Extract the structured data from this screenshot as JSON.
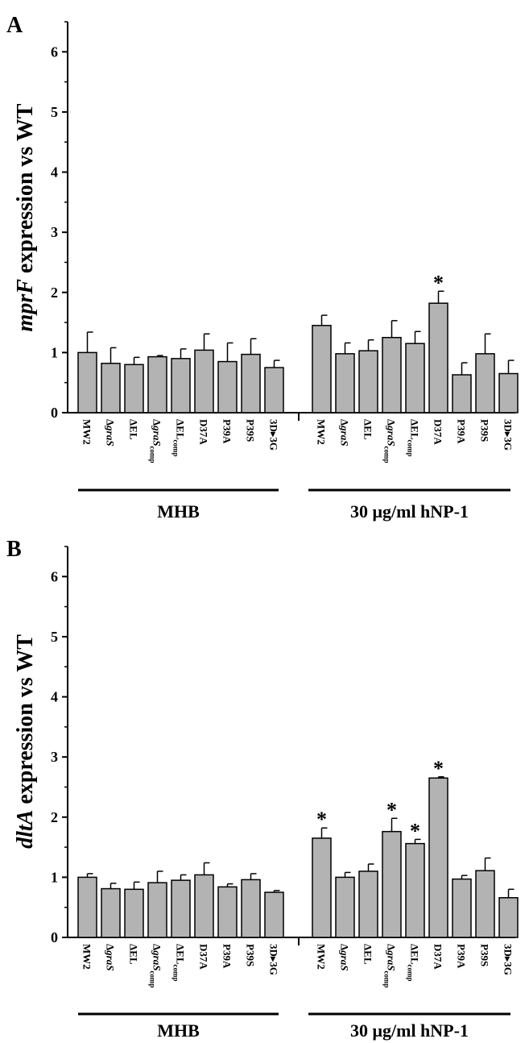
{
  "chart_data": [
    {
      "type": "bar",
      "panel": "A",
      "ylabel_gene": "mprF",
      "ylabel_rest": " expression vs WT",
      "ylim": [
        0,
        6.5
      ],
      "yticks": [
        "0",
        "1",
        "2",
        "3",
        "4",
        "5",
        "6"
      ],
      "categories": [
        {
          "base": "MW2",
          "sub": ""
        },
        {
          "base": "Δ",
          "italic": "graS",
          "sub": ""
        },
        {
          "base": "ΔEL",
          "sub": ""
        },
        {
          "base": "Δ",
          "italic": "graS",
          "sub": "comp"
        },
        {
          "base": "ΔEL",
          "sub": "comp"
        },
        {
          "base": "D37A",
          "sub": ""
        },
        {
          "base": "P39A",
          "sub": ""
        },
        {
          "base": "P39S",
          "sub": ""
        },
        {
          "base": "3D▸3G",
          "sub": ""
        }
      ],
      "groups": [
        {
          "name": "MHB",
          "values": [
            1.0,
            0.82,
            0.8,
            0.93,
            0.9,
            1.04,
            0.85,
            0.97,
            0.75
          ],
          "errors": [
            0.34,
            0.26,
            0.12,
            0.02,
            0.16,
            0.27,
            0.31,
            0.26,
            0.12
          ],
          "significant": [
            false,
            false,
            false,
            false,
            false,
            false,
            false,
            false,
            false
          ]
        },
        {
          "name": "30 μg/ml hNP-1",
          "values": [
            1.45,
            0.98,
            1.03,
            1.25,
            1.15,
            1.82,
            0.63,
            0.98,
            0.65
          ],
          "errors": [
            0.17,
            0.18,
            0.18,
            0.28,
            0.2,
            0.2,
            0.2,
            0.33,
            0.22
          ],
          "significant": [
            false,
            false,
            false,
            false,
            false,
            true,
            false,
            false,
            false
          ]
        }
      ],
      "significance_marker": "*"
    },
    {
      "type": "bar",
      "panel": "B",
      "ylabel_gene": "dltA",
      "ylabel_rest": " expression vs WT",
      "ylim": [
        0,
        6.5
      ],
      "yticks": [
        "0",
        "1",
        "2",
        "3",
        "4",
        "5",
        "6"
      ],
      "categories": [
        {
          "base": "MW2",
          "sub": ""
        },
        {
          "base": "Δ",
          "italic": "graS",
          "sub": ""
        },
        {
          "base": "ΔEL",
          "sub": ""
        },
        {
          "base": "Δ",
          "italic": "graS",
          "sub": "comp"
        },
        {
          "base": "ΔEL",
          "sub": "comp"
        },
        {
          "base": "D37A",
          "sub": ""
        },
        {
          "base": "P39A",
          "sub": ""
        },
        {
          "base": "P39S",
          "sub": ""
        },
        {
          "base": "3D▸3G",
          "sub": ""
        }
      ],
      "groups": [
        {
          "name": "MHB",
          "values": [
            1.0,
            0.81,
            0.8,
            0.91,
            0.95,
            1.04,
            0.84,
            0.96,
            0.75
          ],
          "errors": [
            0.06,
            0.09,
            0.12,
            0.19,
            0.09,
            0.2,
            0.05,
            0.1,
            0.03
          ],
          "significant": [
            false,
            false,
            false,
            false,
            false,
            false,
            false,
            false,
            false
          ]
        },
        {
          "name": "30 μg/ml hNP-1",
          "values": [
            1.65,
            1.0,
            1.1,
            1.76,
            1.56,
            2.65,
            0.97,
            1.11,
            0.66
          ],
          "errors": [
            0.17,
            0.08,
            0.12,
            0.22,
            0.07,
            0.02,
            0.06,
            0.21,
            0.14
          ],
          "significant": [
            true,
            false,
            false,
            true,
            true,
            true,
            false,
            false,
            false
          ]
        }
      ],
      "significance_marker": "*"
    }
  ]
}
